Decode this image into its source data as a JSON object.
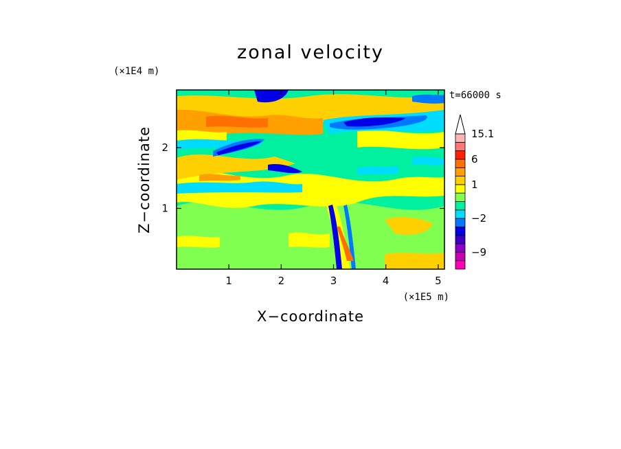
{
  "chart_data": {
    "type": "heatmap",
    "title": "zonal velocity",
    "xlabel": "X−coordinate",
    "ylabel": "Z−coordinate",
    "x_unit": "(×1E5 m)",
    "y_unit": "(×1E4 m)",
    "time_label": "t=66000 s",
    "xlim": [
      0,
      5.12
    ],
    "ylim": [
      0,
      2.95
    ],
    "x_ticks": [
      1,
      2,
      3,
      4,
      5
    ],
    "y_ticks": [
      1,
      2
    ],
    "colorbar": {
      "ticks": [
        {
          "value": 15.1,
          "label": "15.1"
        },
        {
          "value": 6,
          "label": "6"
        },
        {
          "value": 1,
          "label": "1"
        },
        {
          "value": -2,
          "label": "−2"
        },
        {
          "value": -9,
          "label": "−9"
        }
      ],
      "levels": [
        {
          "color": "#ff00b4",
          "low": -13,
          "high": -11
        },
        {
          "color": "#c800b4",
          "low": -11,
          "high": -9
        },
        {
          "color": "#8c00c8",
          "low": -9,
          "high": -7
        },
        {
          "color": "#3c00c8",
          "low": -7,
          "high": -5
        },
        {
          "color": "#0000e6",
          "low": -5,
          "high": -3
        },
        {
          "color": "#0078ff",
          "low": -3,
          "high": -2
        },
        {
          "color": "#00dcff",
          "low": -2,
          "high": -1
        },
        {
          "color": "#00f0a0",
          "low": -1,
          "high": 0
        },
        {
          "color": "#80ff50",
          "low": 0,
          "high": 0.5
        },
        {
          "color": "#ffff00",
          "low": 0.5,
          "high": 1
        },
        {
          "color": "#ffd000",
          "low": 1,
          "high": 2
        },
        {
          "color": "#ffa000",
          "low": 2,
          "high": 4
        },
        {
          "color": "#ff7000",
          "low": 4,
          "high": 6
        },
        {
          "color": "#ff2000",
          "low": 6,
          "high": 9
        },
        {
          "color": "#ff7878",
          "low": 9,
          "high": 12
        },
        {
          "color": "#ffb4b4",
          "low": 12,
          "high": 15.1
        }
      ]
    }
  }
}
